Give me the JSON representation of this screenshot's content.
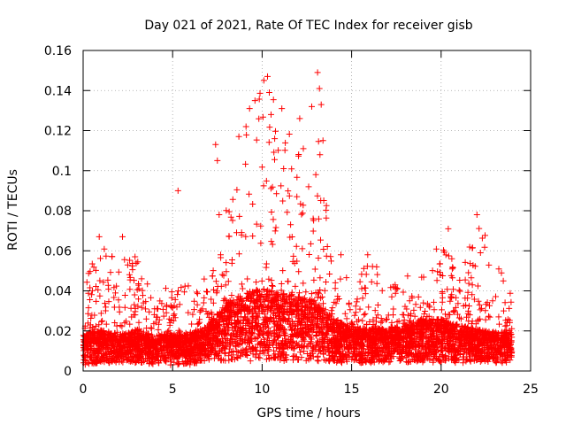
{
  "chart_data": {
    "type": "scatter",
    "title": "Day 021 of 2021, Rate Of TEC Index for receiver gisb",
    "xlabel": "GPS time / hours",
    "ylabel": "ROTI / TECUs",
    "xlim": [
      0,
      25
    ],
    "ylim": [
      0,
      0.16
    ],
    "xticks": [
      0,
      5,
      10,
      15,
      20,
      25
    ],
    "xtick_labels": [
      "0",
      "5",
      "10",
      "15",
      "20",
      "25"
    ],
    "yticks": [
      0,
      0.02,
      0.04,
      0.06,
      0.08,
      0.1,
      0.12,
      0.14,
      0.16
    ],
    "ytick_labels": [
      "0",
      "0.02",
      "0.04",
      "0.06",
      "0.08",
      "0.1",
      "0.12",
      "0.14",
      "0.16"
    ],
    "grid": true,
    "marker": "+",
    "color": "#ff0000",
    "series": [
      {
        "name": "ROTI",
        "notable_points": [
          {
            "x": 0.9,
            "y": 0.067
          },
          {
            "x": 2.2,
            "y": 0.067
          },
          {
            "x": 2.9,
            "y": 0.057
          },
          {
            "x": 5.3,
            "y": 0.09
          },
          {
            "x": 7.4,
            "y": 0.113
          },
          {
            "x": 7.5,
            "y": 0.105
          },
          {
            "x": 7.6,
            "y": 0.078
          },
          {
            "x": 8.7,
            "y": 0.117
          },
          {
            "x": 9.1,
            "y": 0.122
          },
          {
            "x": 9.3,
            "y": 0.131
          },
          {
            "x": 9.6,
            "y": 0.135
          },
          {
            "x": 10.1,
            "y": 0.145
          },
          {
            "x": 10.3,
            "y": 0.147
          },
          {
            "x": 10.4,
            "y": 0.139
          },
          {
            "x": 10.5,
            "y": 0.128
          },
          {
            "x": 10.7,
            "y": 0.116
          },
          {
            "x": 11.1,
            "y": 0.131
          },
          {
            "x": 11.2,
            "y": 0.101
          },
          {
            "x": 12.1,
            "y": 0.126
          },
          {
            "x": 12.3,
            "y": 0.111
          },
          {
            "x": 12.6,
            "y": 0.092
          },
          {
            "x": 13.0,
            "y": 0.098
          },
          {
            "x": 13.1,
            "y": 0.149
          },
          {
            "x": 13.2,
            "y": 0.141
          },
          {
            "x": 13.3,
            "y": 0.133
          },
          {
            "x": 13.4,
            "y": 0.115
          },
          {
            "x": 14.4,
            "y": 0.058
          },
          {
            "x": 15.9,
            "y": 0.058
          },
          {
            "x": 16.4,
            "y": 0.052
          },
          {
            "x": 20.4,
            "y": 0.071
          },
          {
            "x": 20.6,
            "y": 0.056
          },
          {
            "x": 22.0,
            "y": 0.078
          },
          {
            "x": 22.2,
            "y": 0.059
          }
        ],
        "envelope": {
          "x": [
            0,
            1,
            2,
            3,
            4,
            5,
            6,
            7,
            8,
            9,
            10,
            11,
            12,
            13,
            14,
            15,
            16,
            17,
            18,
            19,
            20,
            21,
            22,
            23,
            24
          ],
          "y_max": [
            0.048,
            0.063,
            0.055,
            0.057,
            0.042,
            0.045,
            0.043,
            0.047,
            0.085,
            0.12,
            0.147,
            0.13,
            0.125,
            0.149,
            0.058,
            0.045,
            0.058,
            0.04,
            0.05,
            0.047,
            0.071,
            0.044,
            0.078,
            0.057,
            0.036
          ],
          "y_typical": [
            0.014,
            0.016,
            0.014,
            0.016,
            0.014,
            0.014,
            0.014,
            0.018,
            0.026,
            0.03,
            0.032,
            0.03,
            0.029,
            0.027,
            0.02,
            0.017,
            0.017,
            0.016,
            0.018,
            0.02,
            0.02,
            0.018,
            0.016,
            0.015,
            0.015
          ],
          "y_min": [
            0.003,
            0.004,
            0.004,
            0.004,
            0.003,
            0.003,
            0.003,
            0.004,
            0.005,
            0.005,
            0.005,
            0.005,
            0.005,
            0.005,
            0.004,
            0.004,
            0.004,
            0.004,
            0.004,
            0.004,
            0.004,
            0.004,
            0.004,
            0.004,
            0.004
          ]
        }
      }
    ]
  }
}
